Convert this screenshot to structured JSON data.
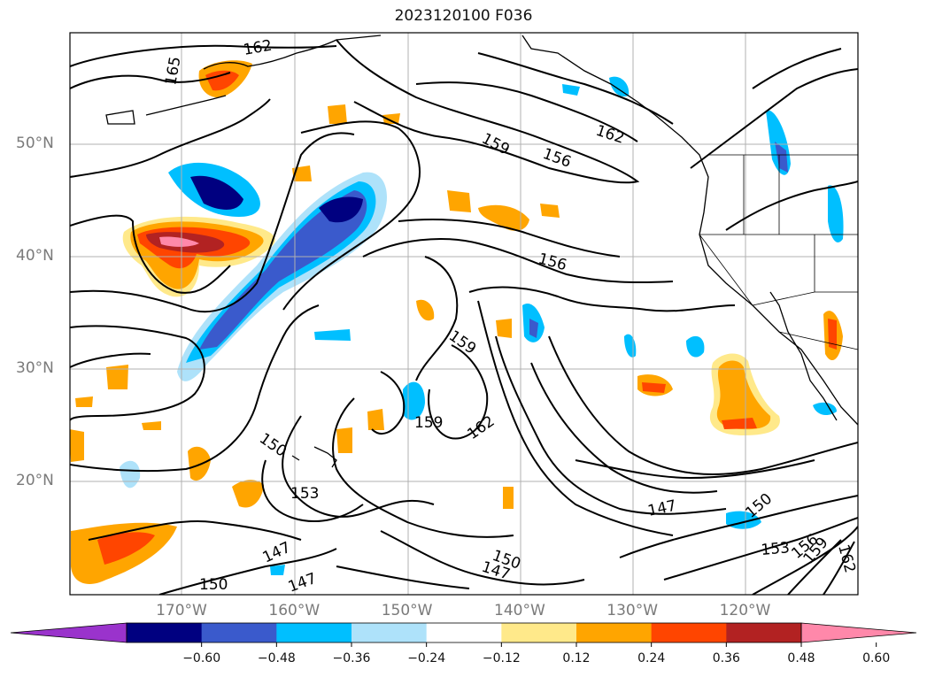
{
  "map": {
    "title": "2023120100 F036",
    "lat_labels": [
      {
        "text": "50°N",
        "lat": 50
      },
      {
        "text": "40°N",
        "lat": 40
      },
      {
        "text": "30°N",
        "lat": 30
      },
      {
        "text": "20°N",
        "lat": 20
      }
    ],
    "lon_labels": [
      {
        "text": "170°W",
        "lon": -170
      },
      {
        "text": "160°W",
        "lon": -160
      },
      {
        "text": "150°W",
        "lon": -150
      },
      {
        "text": "140°W",
        "lon": -140
      },
      {
        "text": "130°W",
        "lon": -130
      },
      {
        "text": "120°W",
        "lon": -120
      }
    ],
    "contour_labels": [
      "162",
      "165",
      "159",
      "156",
      "162",
      "156",
      "159",
      "159",
      "162",
      "150",
      "153",
      "147",
      "147",
      "150",
      "150",
      "147",
      "147",
      "150",
      "153",
      "156",
      "159",
      "162"
    ],
    "colorbar": {
      "colors": [
        "#9a33cc",
        "#000080",
        "#3a5acc",
        "#00bfff",
        "#aee2fa",
        "#ffffff",
        "#ffe98a",
        "#ffa500",
        "#ff4500",
        "#b22222",
        "#ff88aa"
      ],
      "ticks": [
        "−0.60",
        "−0.48",
        "−0.36",
        "−0.24",
        "−0.12",
        "0.12",
        "0.24",
        "0.36",
        "0.48",
        "0.60"
      ]
    }
  }
}
